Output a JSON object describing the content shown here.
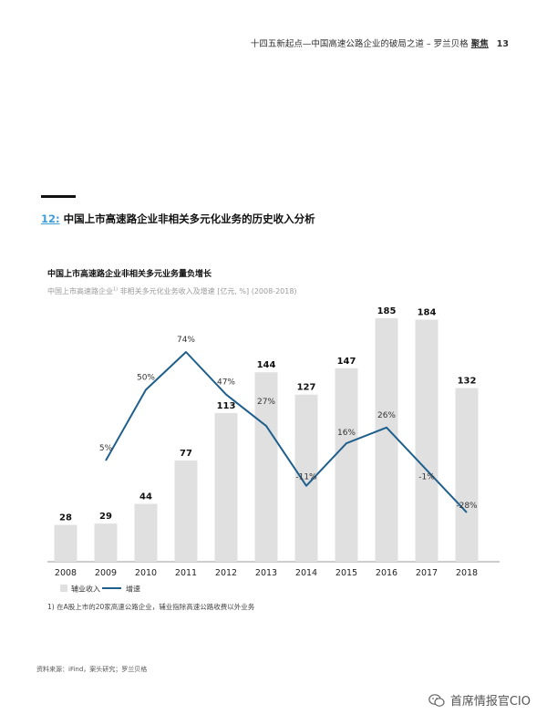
{
  "header": {
    "text": "十四五新起点—中国高速公路企业的破局之道 – 罗兰贝格",
    "focus": "聚焦",
    "page": "13"
  },
  "section": {
    "number": "12:",
    "title": "中国上市高速路企业非相关多元化业务的历史收入分析"
  },
  "chart_data": {
    "type": "bar",
    "title": "中国上市高速路企业非相关多元业务量负增长",
    "subtitle_pre": "中国上市高速路企业",
    "subtitle_sup": "1)",
    "subtitle_post": "非相关多元化业务收入及增速 [亿元, %] (2008-2018)",
    "categories": [
      "2008",
      "2009",
      "2010",
      "2011",
      "2012",
      "2013",
      "2014",
      "2015",
      "2016",
      "2017",
      "2018"
    ],
    "series": [
      {
        "name": "辅业收入",
        "type": "bar",
        "color": "#e0e0e0",
        "values": [
          28,
          29,
          44,
          77,
          113,
          144,
          127,
          147,
          185,
          184,
          132
        ],
        "labels": [
          "28",
          "29",
          "44",
          "77",
          "113",
          "144",
          "127",
          "147",
          "185",
          "184",
          "132"
        ]
      },
      {
        "name": "增速",
        "type": "line",
        "color": "#1f5f8c",
        "x": [
          "2009",
          "2010",
          "2011",
          "2012",
          "2013",
          "2014",
          "2015",
          "2016",
          "2017",
          "2018"
        ],
        "values": [
          5,
          50,
          74,
          47,
          27,
          -11,
          16,
          26,
          -1,
          -28
        ],
        "labels": [
          "5%",
          "50%",
          "74%",
          "47%",
          "27%",
          "-11%",
          "16%",
          "26%",
          "-1%",
          "-28%"
        ]
      }
    ],
    "ylim": [
      0,
      185
    ],
    "growth_ylim": [
      -28,
      74
    ],
    "legend_position": "bottom-left",
    "grid": false
  },
  "footnote": "1) 在A股上市的20家高速公路企业，辅业指除高速公路收费以外业务",
  "source": "资料来源：iFind，案头研究；罗兰贝格",
  "watermark": "首席情报官CIO"
}
